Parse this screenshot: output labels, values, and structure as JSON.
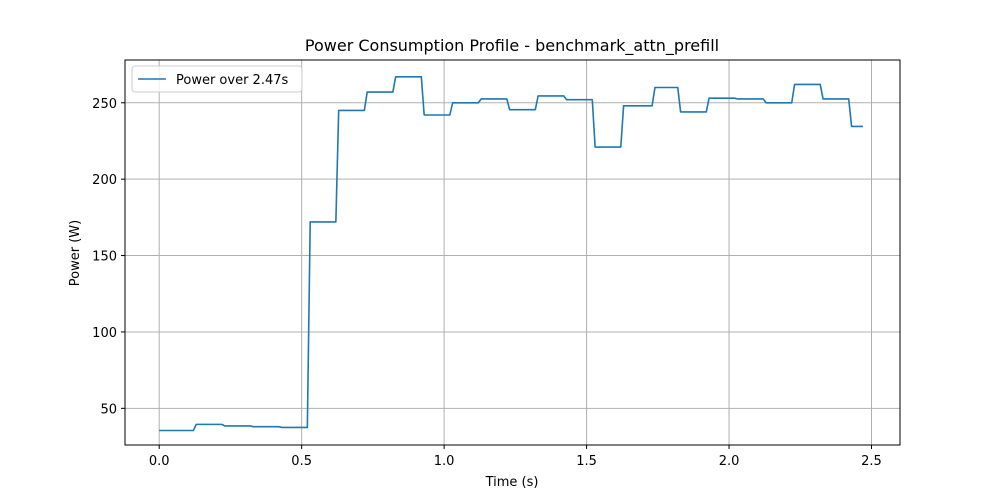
{
  "chart_data": {
    "type": "line",
    "title": "Power Consumption Profile - benchmark_attn_prefill",
    "xlabel": "Time (s)",
    "ylabel": "Power (W)",
    "xlim": [
      -0.12,
      2.6
    ],
    "ylim": [
      26,
      278
    ],
    "xticks": [
      0.0,
      0.5,
      1.0,
      1.5,
      2.0,
      2.5
    ],
    "xtick_labels": [
      "0.0",
      "0.5",
      "1.0",
      "1.5",
      "2.0",
      "2.5"
    ],
    "yticks": [
      50,
      100,
      150,
      200,
      250
    ],
    "ytick_labels": [
      "50",
      "100",
      "150",
      "200",
      "250"
    ],
    "grid": true,
    "legend_position": "top-left",
    "series": [
      {
        "name": "Power over 2.47s",
        "color": "#1f77b4",
        "x": [
          0.0,
          0.12,
          0.13,
          0.22,
          0.23,
          0.32,
          0.33,
          0.42,
          0.43,
          0.52,
          0.53,
          0.62,
          0.63,
          0.72,
          0.73,
          0.82,
          0.83,
          0.92,
          0.93,
          1.02,
          1.03,
          1.12,
          1.13,
          1.22,
          1.23,
          1.32,
          1.33,
          1.42,
          1.43,
          1.52,
          1.53,
          1.62,
          1.63,
          1.73,
          1.74,
          1.82,
          1.83,
          1.92,
          1.93,
          2.02,
          2.03,
          2.12,
          2.13,
          2.22,
          2.23,
          2.32,
          2.33,
          2.42,
          2.43,
          2.47
        ],
        "y": [
          35.5,
          35.5,
          39.5,
          39.5,
          38.5,
          38.5,
          38,
          38,
          37.5,
          37.5,
          172,
          172,
          245,
          245,
          257,
          257,
          267,
          267,
          242,
          242,
          250,
          250,
          252.5,
          252.5,
          245.5,
          245.5,
          254.5,
          254.5,
          252,
          252,
          221,
          221,
          248,
          248,
          260,
          260,
          244,
          244,
          253,
          253,
          252.5,
          252.5,
          250,
          250,
          262,
          262,
          252.5,
          252.5,
          234.5,
          234.5
        ]
      }
    ]
  },
  "colors": {
    "grid": "#b0b0b0",
    "axes": "#000000",
    "legend_border": "#cccccc"
  }
}
